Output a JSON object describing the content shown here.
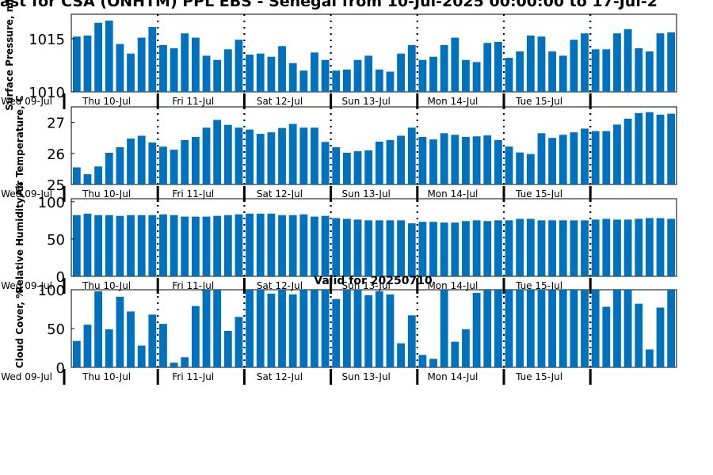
{
  "chart_data": {
    "type": "bar",
    "title": "ast for CSA (ONHTM) PPL EBS  - Senegal from 10-Jul-2025 00:00:00 to 17-Jul-2",
    "subtitle": "Valid for 20250710",
    "day_labels": [
      "Wed 09-Jul",
      "Thu 10-Jul",
      "Fri 11-Jul",
      "Sat 12-Jul",
      "Sun 13-Jul",
      "Mon 14-Jul",
      "Tue 15-Jul"
    ],
    "bar_color": "#0072bd",
    "bars_per_day": 8,
    "panels": [
      {
        "ylabel": "Surface Pressure, mb",
        "ylim": [
          1010,
          1017.3
        ],
        "yticks": [
          1010,
          1015
        ],
        "values": [
          1015.2,
          1015.3,
          1016.5,
          1016.7,
          1014.5,
          1013.6,
          1015.1,
          1016.1,
          1014.4,
          1014.1,
          1015.5,
          1015.1,
          1013.4,
          1013.0,
          1014.0,
          1014.9,
          1013.5,
          1013.6,
          1013.3,
          1014.3,
          1012.7,
          1012.0,
          1013.7,
          1013.0,
          1012.0,
          1012.1,
          1013.0,
          1013.4,
          1012.1,
          1011.9,
          1013.6,
          1014.4,
          1013.0,
          1013.3,
          1014.4,
          1015.1,
          1013.0,
          1012.8,
          1014.6,
          1014.7,
          1013.2,
          1013.8,
          1015.3,
          1015.2,
          1013.8,
          1013.4,
          1014.9,
          1015.5,
          1014.0,
          1014.0,
          1015.5,
          1015.9,
          1014.1,
          1013.8,
          1015.5,
          1015.6
        ]
      },
      {
        "ylabel": "Air Temperature, C",
        "ylim": [
          25,
          27.5
        ],
        "yticks": [
          25,
          26,
          27
        ],
        "values": [
          25.55,
          25.33,
          25.58,
          26.02,
          26.2,
          26.48,
          26.57,
          26.35,
          26.22,
          26.12,
          26.43,
          26.53,
          26.83,
          27.08,
          26.92,
          26.83,
          26.77,
          26.63,
          26.68,
          26.82,
          26.95,
          26.83,
          26.83,
          26.37,
          26.2,
          26.02,
          26.07,
          26.1,
          26.38,
          26.43,
          26.57,
          26.83,
          26.53,
          26.45,
          26.65,
          26.6,
          26.53,
          26.55,
          26.58,
          26.43,
          26.22,
          26.03,
          25.98,
          26.65,
          26.5,
          26.6,
          26.68,
          26.8,
          26.72,
          26.72,
          26.93,
          27.12,
          27.3,
          27.33,
          27.25,
          27.28
        ]
      },
      {
        "ylabel": "Relative Humidity, %",
        "ylim": [
          0,
          104
        ],
        "yticks": [
          0,
          50,
          100
        ],
        "values": [
          82,
          84,
          82,
          82,
          81,
          82,
          82,
          82,
          83,
          82,
          80,
          80,
          80,
          81,
          82,
          83,
          84,
          84,
          84,
          82,
          82,
          83,
          80,
          81,
          78,
          77,
          76,
          75,
          75,
          75,
          75,
          71,
          73,
          73,
          72,
          72,
          74,
          75,
          74,
          75,
          75,
          77,
          77,
          75,
          75,
          75,
          75,
          75,
          76,
          77,
          76,
          76,
          77,
          78,
          78,
          77
        ]
      },
      {
        "ylabel": "Cloud Cover, %",
        "ylim": [
          0,
          100
        ],
        "yticks": [
          0,
          50,
          100
        ],
        "values": [
          34,
          55,
          98,
          49,
          91,
          72,
          28,
          68,
          56,
          6,
          13,
          79,
          100,
          100,
          47,
          65,
          100,
          100,
          95,
          100,
          94,
          100,
          100,
          100,
          88,
          100,
          100,
          93,
          98,
          94,
          31,
          67,
          16,
          11,
          100,
          33,
          49,
          96,
          100,
          100,
          100,
          100,
          100,
          100,
          100,
          100,
          100,
          100,
          100,
          78,
          100,
          100,
          82,
          23,
          77,
          100
        ]
      }
    ]
  }
}
